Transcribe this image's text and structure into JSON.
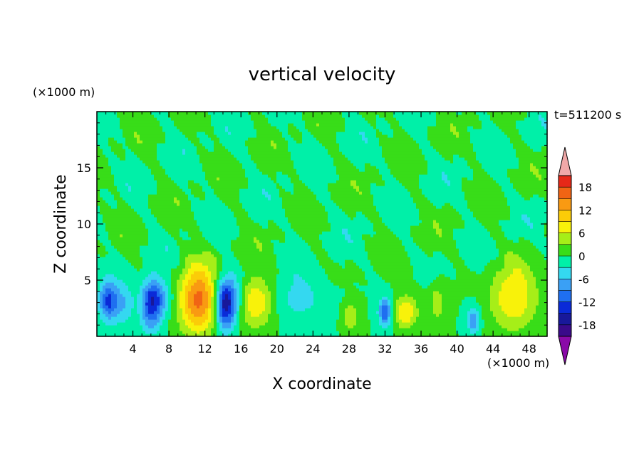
{
  "chart_data": {
    "type": "heatmap",
    "title": "vertical velocity",
    "xlabel": "X coordinate",
    "ylabel": "Z coordinate",
    "x_unit": "(×1000 m)",
    "y_unit": "(×1000 m)",
    "time_label": "t=511200 s",
    "xlim": [
      0,
      50
    ],
    "ylim": [
      0,
      20
    ],
    "x_ticks": [
      4,
      8,
      12,
      16,
      20,
      24,
      28,
      32,
      36,
      40,
      44,
      48
    ],
    "y_ticks": [
      5,
      10,
      15
    ],
    "colorbar": {
      "levels": [
        -21,
        -18,
        -15,
        -12,
        -9,
        -6,
        -3,
        0,
        3,
        6,
        9,
        12,
        15,
        18,
        21
      ],
      "labels": [
        18,
        12,
        6,
        0,
        -6,
        -12,
        -18
      ],
      "colors": [
        "#3a0a8a",
        "#18189a",
        "#0a2ad8",
        "#1f6ff0",
        "#3aa0f5",
        "#34d8f0",
        "#00f0a8",
        "#38dd18",
        "#a6ee18",
        "#f8f20a",
        "#fbcc08",
        "#f99a12",
        "#f16414",
        "#e62818",
        "#f0a0a0"
      ],
      "under_color": "#8a0aa8",
      "over_color": "#f0a8a8"
    },
    "cells": {
      "description": "features: [x_center, z_center, sigma_x, sigma_z, peak]",
      "features": [
        [
          1.2,
          3.2,
          0.7,
          1.2,
          -12
        ],
        [
          2.8,
          3.0,
          0.9,
          1.4,
          -6
        ],
        [
          6.0,
          2.8,
          0.8,
          1.6,
          -12
        ],
        [
          7.0,
          3.5,
          1.0,
          1.2,
          -6
        ],
        [
          11.3,
          3.3,
          1.5,
          2.1,
          16
        ],
        [
          14.2,
          2.8,
          0.8,
          1.6,
          -15
        ],
        [
          15.0,
          3.5,
          1.0,
          1.5,
          -6
        ],
        [
          17.6,
          3.1,
          1.4,
          1.6,
          9
        ],
        [
          22.5,
          3.5,
          2.2,
          1.6,
          -4
        ],
        [
          28.2,
          1.8,
          0.6,
          0.9,
          6
        ],
        [
          32.0,
          2.2,
          0.5,
          0.9,
          -12
        ],
        [
          34.3,
          2.2,
          0.9,
          1.0,
          9
        ],
        [
          37.8,
          3.0,
          0.5,
          1.2,
          5
        ],
        [
          41.8,
          1.5,
          0.5,
          0.8,
          -9
        ],
        [
          46.3,
          3.5,
          1.8,
          2.0,
          9
        ]
      ]
    }
  }
}
